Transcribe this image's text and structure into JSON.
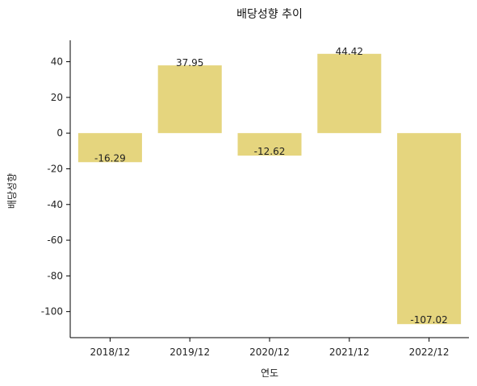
{
  "chart_data": {
    "type": "bar",
    "title": "배당성향 추이",
    "xlabel": "연도",
    "ylabel": "배당성향",
    "categories": [
      "2018/12",
      "2019/12",
      "2020/12",
      "2021/12",
      "2022/12"
    ],
    "values": [
      -16.29,
      37.95,
      -12.62,
      44.42,
      -107.02
    ],
    "data_labels": [
      "-16.29",
      "37.95",
      "-12.62",
      "44.42",
      "-107.02"
    ],
    "yticks": [
      40,
      20,
      0,
      -20,
      -40,
      -60,
      -80,
      -100
    ],
    "ylim": [
      -114.6,
      52
    ],
    "grid": false,
    "colors": {
      "bar": "#E5D57E",
      "axis": "#000000"
    }
  }
}
